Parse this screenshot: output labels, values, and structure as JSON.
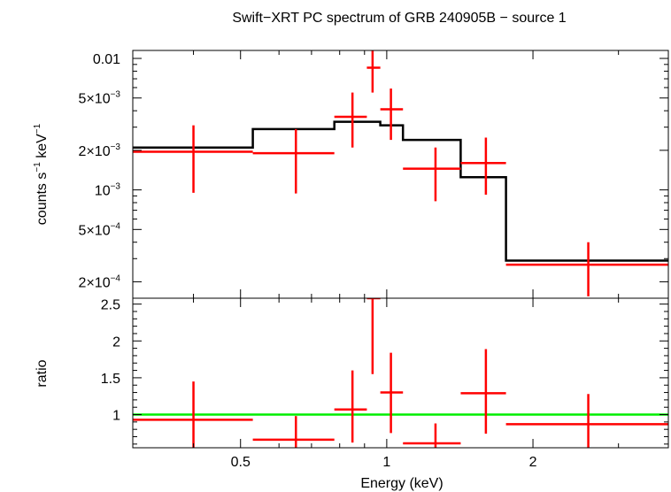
{
  "chart_data": [
    {
      "type": "scatter",
      "title": "Swift−XRT PC spectrum of GRB 240905B − source 1",
      "ylabel_main": "counts s",
      "ylabel_exp1": "−1",
      "ylabel_mid": " keV",
      "ylabel_exp2": "−1",
      "xlim": [
        0.3,
        3.8
      ],
      "ylim": [
        0.00015,
        0.0115
      ],
      "xscale": "log",
      "yscale": "log",
      "ytick_labels": [
        {
          "value": 0.01,
          "base": "0.01",
          "exp": ""
        },
        {
          "value": 0.005,
          "base": "5×10",
          "exp": "−3"
        },
        {
          "value": 0.002,
          "base": "2×10",
          "exp": "−3"
        },
        {
          "value": 0.001,
          "base": "10",
          "exp": "−3"
        },
        {
          "value": 0.0005,
          "base": "5×10",
          "exp": "−4"
        },
        {
          "value": 0.0002,
          "base": "2×10",
          "exp": "−4"
        }
      ],
      "data_points": [
        {
          "x": 0.4,
          "xlo": 0.3,
          "xhi": 0.53,
          "y": 0.00195,
          "ylo": 0.00095,
          "yhi": 0.0031
        },
        {
          "x": 0.65,
          "xlo": 0.53,
          "xhi": 0.78,
          "y": 0.0019,
          "ylo": 0.00094,
          "yhi": 0.0029
        },
        {
          "x": 0.85,
          "xlo": 0.78,
          "xhi": 0.91,
          "y": 0.0036,
          "ylo": 0.0021,
          "yhi": 0.0055
        },
        {
          "x": 0.935,
          "xlo": 0.91,
          "xhi": 0.97,
          "y": 0.0085,
          "ylo": 0.0055,
          "yhi": 0.0125
        },
        {
          "x": 1.02,
          "xlo": 0.97,
          "xhi": 1.08,
          "y": 0.0041,
          "ylo": 0.0024,
          "yhi": 0.0059
        },
        {
          "x": 1.26,
          "xlo": 1.08,
          "xhi": 1.42,
          "y": 0.00145,
          "ylo": 0.00082,
          "yhi": 0.0021
        },
        {
          "x": 1.6,
          "xlo": 1.42,
          "xhi": 1.76,
          "y": 0.0016,
          "ylo": 0.00092,
          "yhi": 0.0025
        },
        {
          "x": 2.6,
          "xlo": 1.76,
          "xhi": 3.8,
          "y": 0.00027,
          "ylo": 0.000155,
          "yhi": 0.0004
        }
      ],
      "model_steps": [
        {
          "xlo": 0.3,
          "xhi": 0.53,
          "y": 0.0021
        },
        {
          "xlo": 0.53,
          "xhi": 0.78,
          "y": 0.0029
        },
        {
          "xlo": 0.78,
          "xhi": 0.97,
          "y": 0.0033
        },
        {
          "xlo": 0.97,
          "xhi": 1.08,
          "y": 0.0031
        },
        {
          "xlo": 1.08,
          "xhi": 1.42,
          "y": 0.0024
        },
        {
          "xlo": 1.42,
          "xhi": 1.76,
          "y": 0.00125
        },
        {
          "xlo": 1.76,
          "xhi": 3.8,
          "y": 0.00029
        }
      ],
      "colors": {
        "data": "#ff0000",
        "model": "#000000"
      }
    },
    {
      "type": "scatter",
      "xlabel": "Energy (keV)",
      "ylabel": "ratio",
      "xlim": [
        0.3,
        3.8
      ],
      "ylim": [
        0.55,
        2.58
      ],
      "xscale": "log",
      "xtick_labels": [
        {
          "value": 0.5,
          "label": "0.5"
        },
        {
          "value": 1,
          "label": "1"
        },
        {
          "value": 2,
          "label": "2"
        }
      ],
      "ytick_labels": [
        {
          "value": 1,
          "label": "1"
        },
        {
          "value": 1.5,
          "label": "1.5"
        },
        {
          "value": 2,
          "label": "2"
        },
        {
          "value": 2.5,
          "label": "2.5"
        }
      ],
      "reference_line": 1,
      "data_points": [
        {
          "x": 0.4,
          "xlo": 0.3,
          "xhi": 0.53,
          "y": 0.93,
          "ylo": 0.45,
          "yhi": 1.45
        },
        {
          "x": 0.65,
          "xlo": 0.53,
          "xhi": 0.78,
          "y": 0.66,
          "ylo": 0.33,
          "yhi": 0.98
        },
        {
          "x": 0.85,
          "xlo": 0.78,
          "xhi": 0.91,
          "y": 1.07,
          "ylo": 0.62,
          "yhi": 1.6
        },
        {
          "x": 0.935,
          "xlo": 0.91,
          "xhi": 0.97,
          "y": 2.58,
          "ylo": 1.55,
          "yhi": 3.6
        },
        {
          "x": 1.02,
          "xlo": 0.97,
          "xhi": 1.08,
          "y": 1.3,
          "ylo": 0.75,
          "yhi": 1.84
        },
        {
          "x": 1.26,
          "xlo": 1.08,
          "xhi": 1.42,
          "y": 0.61,
          "ylo": 0.35,
          "yhi": 0.88
        },
        {
          "x": 1.6,
          "xlo": 1.42,
          "xhi": 1.76,
          "y": 1.29,
          "ylo": 0.74,
          "yhi": 1.89
        },
        {
          "x": 2.6,
          "xlo": 1.76,
          "xhi": 3.8,
          "y": 0.87,
          "ylo": 0.5,
          "yhi": 1.28
        }
      ],
      "colors": {
        "data": "#ff0000",
        "reference": "#00ee00"
      }
    }
  ]
}
